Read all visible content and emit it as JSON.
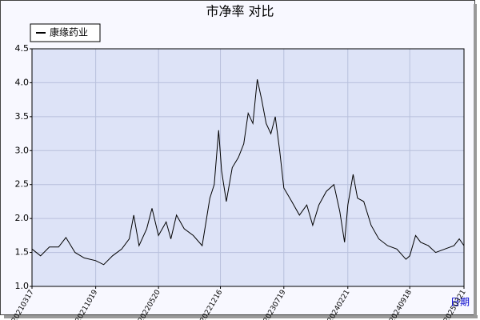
{
  "chart_data": {
    "type": "line",
    "title": "市净率  对比",
    "x_label": "日期",
    "x": [
      "20210317",
      "20210415",
      "20210515",
      "20210615",
      "20210710",
      "20210810",
      "20210910",
      "20211019",
      "20211115",
      "20211215",
      "20220115",
      "20220210",
      "20220225",
      "20220315",
      "20220410",
      "20220428",
      "20220520",
      "20220615",
      "20220701",
      "20220720",
      "20220815",
      "20220915",
      "20221015",
      "20221110",
      "20221125",
      "20221210",
      "20221220",
      "20230105",
      "20230125",
      "20230215",
      "20230305",
      "20230320",
      "20230405",
      "20230420",
      "20230505",
      "20230520",
      "20230605",
      "20230620",
      "20230705",
      "20230719",
      "20230815",
      "20230910",
      "20231005",
      "20231025",
      "20231115",
      "20231210",
      "20240105",
      "20240125",
      "20240210",
      "20240221",
      "20240310",
      "20240325",
      "20240415",
      "20240510",
      "20240605",
      "20240705",
      "20240805",
      "20240905",
      "20240918",
      "20241008",
      "20241025",
      "20241120",
      "20241215",
      "20250115",
      "20250215",
      "20250305",
      "20250321"
    ],
    "series": [
      {
        "name": "康缘药业",
        "color": "#000000",
        "values": [
          1.55,
          1.45,
          1.58,
          1.58,
          1.72,
          1.5,
          1.42,
          1.38,
          1.32,
          1.45,
          1.55,
          1.7,
          2.05,
          1.6,
          1.85,
          2.15,
          1.75,
          1.95,
          1.7,
          2.05,
          1.85,
          1.75,
          1.6,
          2.3,
          2.5,
          3.3,
          2.7,
          2.25,
          2.75,
          2.9,
          3.1,
          3.55,
          3.4,
          4.05,
          3.75,
          3.4,
          3.25,
          3.5,
          3.0,
          2.45,
          2.25,
          2.05,
          2.2,
          1.9,
          2.2,
          2.4,
          2.5,
          2.1,
          1.65,
          2.2,
          2.65,
          2.3,
          2.25,
          1.9,
          1.7,
          1.6,
          1.55,
          1.4,
          1.45,
          1.75,
          1.65,
          1.6,
          1.5,
          1.55,
          1.6,
          1.7,
          1.6
        ]
      }
    ],
    "xticks": [
      "20210317",
      "20211019",
      "20220520",
      "20221216",
      "20230719",
      "20240221",
      "20240918",
      "20250321"
    ],
    "ylim": [
      1,
      4.5
    ],
    "yticks": [
      {
        "value": 1,
        "label": "1.0"
      },
      1.5,
      {
        "value": 2,
        "label": "2.0"
      },
      2.5,
      {
        "value": 3,
        "label": "3.0"
      },
      3.5,
      {
        "value": 4,
        "label": "4.0"
      },
      4.5
    ],
    "grid": true,
    "legend": "top-left"
  }
}
